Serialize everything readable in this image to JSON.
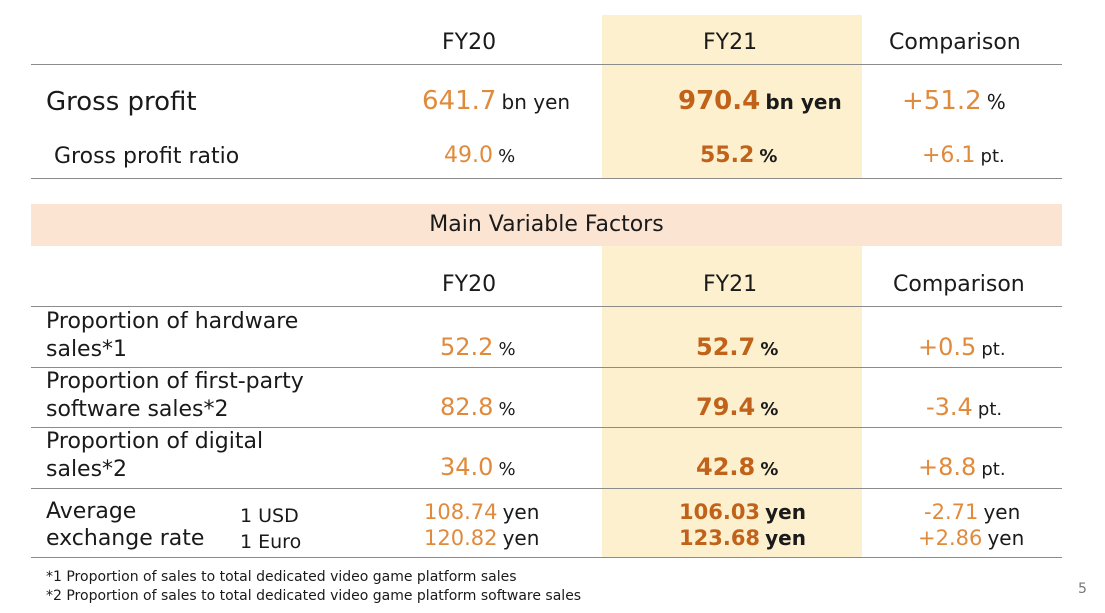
{
  "top_table": {
    "headers": {
      "fy20": "FY20",
      "fy21": "FY21",
      "comparison": "Comparison"
    },
    "rows": [
      {
        "label": "Gross profit",
        "fy20_value": "641.7",
        "fy20_unit": "bn yen",
        "fy21_value": "970.4",
        "fy21_unit": "bn yen",
        "cmp_value": "+51.2",
        "cmp_unit": "%"
      },
      {
        "label": "Gross profit ratio",
        "fy20_value": "49.0",
        "fy20_unit": "%",
        "fy21_value": "55.2",
        "fy21_unit": "%",
        "cmp_value": "+6.1",
        "cmp_unit": "pt."
      }
    ]
  },
  "factors": {
    "title": "Main Variable Factors",
    "headers": {
      "fy20": "FY20",
      "fy21": "FY21",
      "comparison": "Comparison"
    },
    "rows": [
      {
        "label_line1": "Proportion of hardware",
        "label_line2": "sales*1",
        "fy20_value": "52.2",
        "fy20_unit": "%",
        "fy21_value": "52.7",
        "fy21_unit": "%",
        "cmp_value": "+0.5",
        "cmp_unit": "pt."
      },
      {
        "label_line1": "Proportion of first-party",
        "label_line2": "software sales*2",
        "fy20_value": "82.8",
        "fy20_unit": "%",
        "fy21_value": "79.4",
        "fy21_unit": "%",
        "cmp_value": "-3.4",
        "cmp_unit": "pt."
      },
      {
        "label_line1": "Proportion of digital",
        "label_line2": "sales*2",
        "fy20_value": "34.0",
        "fy20_unit": "%",
        "fy21_value": "42.8",
        "fy21_unit": "%",
        "cmp_value": "+8.8",
        "cmp_unit": "pt."
      }
    ],
    "exchange": {
      "label_line1": "Average",
      "label_line2": "exchange rate",
      "currencies": [
        {
          "name": "1 USD",
          "fy20_value": "108.74",
          "fy21_value": "106.03",
          "cmp_value": "-2.71",
          "unit": "yen"
        },
        {
          "name": "1 Euro",
          "fy20_value": "120.82",
          "fy21_value": "123.68",
          "cmp_value": "+2.86",
          "unit": "yen"
        }
      ]
    }
  },
  "footnotes": [
    "*1 Proportion of sales to total dedicated video game platform sales",
    "*2 Proportion of sales to total dedicated video game platform software sales"
  ],
  "page_number": "5",
  "colors": {
    "highlight": "#fdf0cf",
    "band": "#fbe4d2",
    "value_orange": "#e08a3c",
    "value_bold": "#c0621a"
  }
}
